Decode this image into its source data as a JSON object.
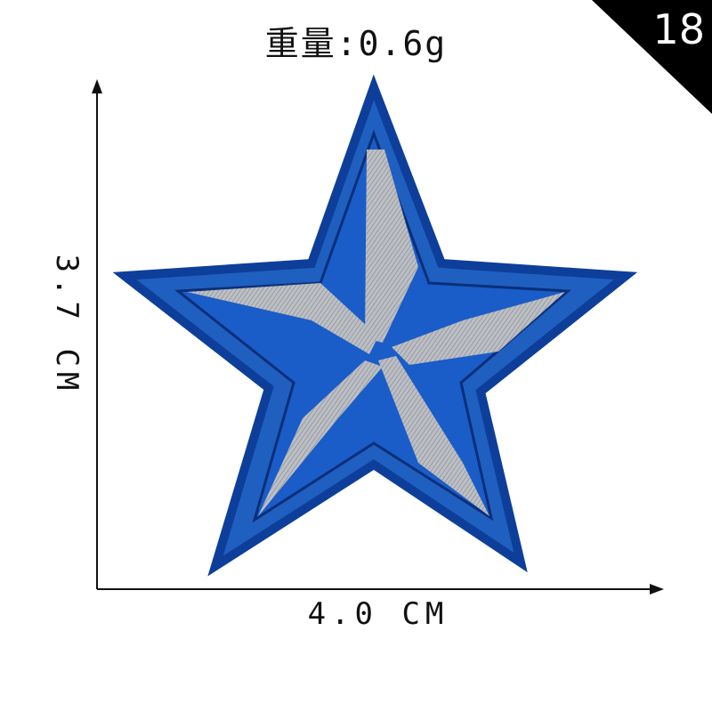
{
  "weight_label": "重量:0.6g",
  "corner_badge": "18",
  "dimensions": {
    "width_label": "4.0 CM",
    "height_label": "3.7 CM"
  },
  "colors": {
    "star_blue": "#1f5fc0",
    "star_border": "#0d3f9a",
    "silver_thread": "#c9c9c9",
    "badge_bg": "#000000"
  }
}
